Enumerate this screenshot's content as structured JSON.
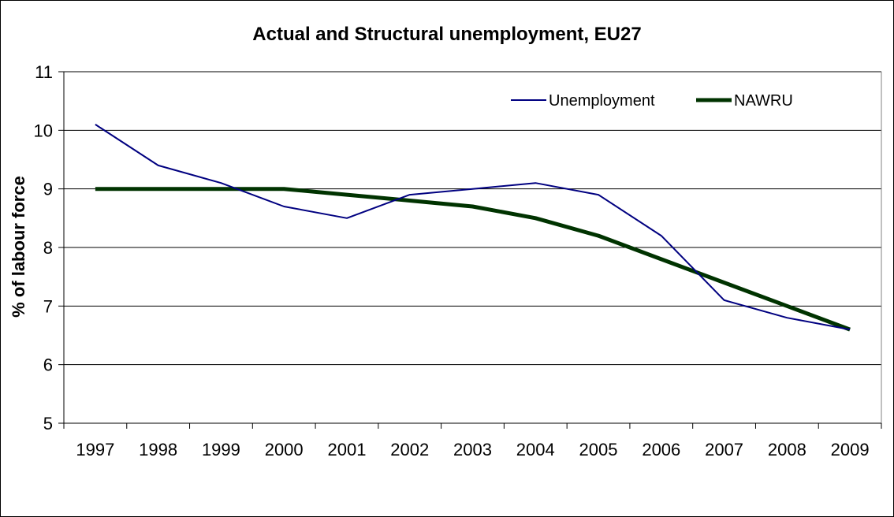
{
  "chart_data": {
    "type": "line",
    "title": "Actual and Structural unemployment, EU27",
    "xlabel": "",
    "ylabel": "% of labour force",
    "categories": [
      "1997",
      "1998",
      "1999",
      "2000",
      "2001",
      "2002",
      "2003",
      "2004",
      "2005",
      "2006",
      "2007",
      "2008",
      "2009"
    ],
    "ylim": [
      5,
      11
    ],
    "yticks": [
      "5",
      "6",
      "7",
      "8",
      "9",
      "10",
      "11"
    ],
    "grid": true,
    "legend_position": "top-right",
    "series": [
      {
        "name": "Unemployment",
        "color": "#000080",
        "values": [
          10.1,
          9.4,
          9.1,
          8.7,
          8.5,
          8.9,
          9.0,
          9.1,
          8.9,
          8.2,
          7.1,
          6.8,
          6.6
        ]
      },
      {
        "name": "NAWRU",
        "color": "#003300",
        "values": [
          9.0,
          9.0,
          9.0,
          9.0,
          8.9,
          8.8,
          8.7,
          8.5,
          8.2,
          7.8,
          7.4,
          7.0,
          6.6
        ]
      }
    ]
  }
}
